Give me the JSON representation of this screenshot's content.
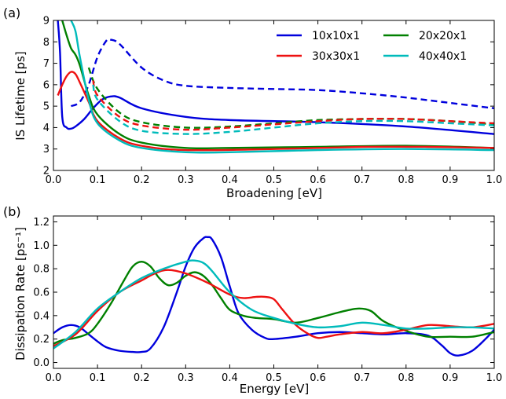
{
  "colors": {
    "10x10x1": "#0000dd",
    "20x20x1": "#008000",
    "30x30x1": "#ee1111",
    "40x40x1": "#00bbbb"
  },
  "chart_data": [
    {
      "type": "line",
      "panel_label": "(a)",
      "xlabel": "Broadening [eV]",
      "ylabel": "IS Lifetime [ps]",
      "xlim": [
        0.0,
        1.0
      ],
      "ylim": [
        2,
        9
      ],
      "xticks": [
        0.0,
        0.1,
        0.2,
        0.3,
        0.4,
        0.5,
        0.6,
        0.7,
        0.8,
        0.9,
        1.0
      ],
      "xtick_labels": [
        "0.0",
        "0.1",
        "0.2",
        "0.3",
        "0.4",
        "0.5",
        "0.6",
        "0.7",
        "0.8",
        "0.9",
        "1.0"
      ],
      "yticks": [
        2,
        3,
        4,
        5,
        6,
        7,
        8,
        9
      ],
      "ytick_labels": [
        "2",
        "3",
        "4",
        "5",
        "6",
        "7",
        "8",
        "9"
      ],
      "grid": false,
      "legend": {
        "placement": "top-right",
        "columns": 2,
        "entries": [
          "10x10x1",
          "20x20x1",
          "30x30x1",
          "40x40x1"
        ]
      },
      "series": [
        {
          "name": "10x10x1",
          "style": "solid",
          "x": [
            0.01,
            0.015,
            0.02,
            0.03,
            0.04,
            0.05,
            0.07,
            0.09,
            0.11,
            0.13,
            0.15,
            0.2,
            0.3,
            0.4,
            0.6,
            0.8,
            1.0
          ],
          "y": [
            9.0,
            7.5,
            4.5,
            4.0,
            3.95,
            4.05,
            4.4,
            4.9,
            5.3,
            5.45,
            5.4,
            4.9,
            4.5,
            4.35,
            4.25,
            4.05,
            3.7
          ]
        },
        {
          "name": "10x10x1",
          "style": "dashed",
          "x": [
            0.04,
            0.06,
            0.08,
            0.1,
            0.12,
            0.13,
            0.15,
            0.2,
            0.25,
            0.3,
            0.4,
            0.5,
            0.6,
            0.7,
            0.8,
            0.9,
            1.0
          ],
          "y": [
            5.0,
            5.2,
            6.0,
            7.3,
            8.05,
            8.1,
            7.9,
            6.8,
            6.2,
            5.95,
            5.85,
            5.8,
            5.75,
            5.6,
            5.4,
            5.15,
            4.9
          ]
        },
        {
          "name": "20x20x1",
          "style": "solid",
          "x": [
            0.02,
            0.03,
            0.04,
            0.05,
            0.06,
            0.08,
            0.1,
            0.15,
            0.2,
            0.3,
            0.4,
            0.6,
            0.8,
            1.0
          ],
          "y": [
            9.0,
            8.3,
            7.7,
            7.4,
            6.9,
            5.5,
            4.6,
            3.7,
            3.3,
            3.05,
            3.05,
            3.1,
            3.15,
            3.05
          ]
        },
        {
          "name": "20x20x1",
          "style": "dashed",
          "x": [
            0.08,
            0.1,
            0.15,
            0.2,
            0.3,
            0.4,
            0.5,
            0.6,
            0.7,
            0.8,
            0.9,
            1.0
          ],
          "y": [
            6.8,
            5.8,
            4.7,
            4.25,
            4.0,
            4.05,
            4.2,
            4.35,
            4.4,
            4.4,
            4.3,
            4.15
          ]
        },
        {
          "name": "30x30x1",
          "style": "solid",
          "x": [
            0.01,
            0.02,
            0.03,
            0.04,
            0.05,
            0.06,
            0.08,
            0.1,
            0.15,
            0.2,
            0.3,
            0.5,
            0.7,
            0.85,
            1.0
          ],
          "y": [
            5.5,
            6.0,
            6.4,
            6.6,
            6.5,
            6.1,
            5.2,
            4.3,
            3.5,
            3.15,
            2.95,
            3.0,
            3.1,
            3.1,
            3.05
          ]
        },
        {
          "name": "30x30x1",
          "style": "dashed",
          "x": [
            0.09,
            0.1,
            0.15,
            0.2,
            0.3,
            0.4,
            0.5,
            0.6,
            0.7,
            0.8,
            0.9,
            1.0
          ],
          "y": [
            6.2,
            5.5,
            4.5,
            4.1,
            3.9,
            4.0,
            4.15,
            4.3,
            4.4,
            4.4,
            4.3,
            4.2
          ]
        },
        {
          "name": "40x40x1",
          "style": "solid",
          "x": [
            0.04,
            0.05,
            0.06,
            0.08,
            0.1,
            0.15,
            0.2,
            0.3,
            0.4,
            0.6,
            0.8,
            1.0
          ],
          "y": [
            9.0,
            8.5,
            7.3,
            5.3,
            4.2,
            3.4,
            3.05,
            2.85,
            2.85,
            2.95,
            3.0,
            2.95
          ]
        },
        {
          "name": "40x40x1",
          "style": "dashed",
          "x": [
            0.09,
            0.1,
            0.15,
            0.2,
            0.3,
            0.4,
            0.5,
            0.6,
            0.7,
            0.8,
            0.9,
            1.0
          ],
          "y": [
            6.0,
            5.3,
            4.3,
            3.85,
            3.7,
            3.8,
            4.0,
            4.2,
            4.3,
            4.3,
            4.2,
            4.1
          ]
        }
      ]
    },
    {
      "type": "line",
      "panel_label": "(b)",
      "xlabel": "Energy [eV]",
      "ylabel": "Dissipation Rate [ps⁻¹]",
      "xlim": [
        0.0,
        1.0
      ],
      "ylim": [
        -0.05,
        1.25
      ],
      "xticks": [
        0.0,
        0.1,
        0.2,
        0.3,
        0.4,
        0.5,
        0.6,
        0.7,
        0.8,
        0.9,
        1.0
      ],
      "xtick_labels": [
        "0.0",
        "0.1",
        "0.2",
        "0.3",
        "0.4",
        "0.5",
        "0.6",
        "0.7",
        "0.8",
        "0.9",
        "1.0"
      ],
      "yticks": [
        0.0,
        0.2,
        0.4,
        0.6,
        0.8,
        1.0,
        1.2
      ],
      "ytick_labels": [
        "0.0",
        "0.2",
        "0.4",
        "0.6",
        "0.8",
        "1.0",
        "1.2"
      ],
      "grid": false,
      "series": [
        {
          "name": "10x10x1",
          "x": [
            0.0,
            0.02,
            0.04,
            0.06,
            0.08,
            0.1,
            0.12,
            0.15,
            0.18,
            0.2,
            0.22,
            0.25,
            0.28,
            0.3,
            0.32,
            0.34,
            0.35,
            0.36,
            0.38,
            0.4,
            0.42,
            0.45,
            0.48,
            0.5,
            0.55,
            0.6,
            0.65,
            0.7,
            0.75,
            0.8,
            0.85,
            0.88,
            0.9,
            0.92,
            0.95,
            0.98,
            1.0
          ],
          "y": [
            0.25,
            0.3,
            0.32,
            0.3,
            0.24,
            0.18,
            0.13,
            0.1,
            0.09,
            0.09,
            0.12,
            0.3,
            0.6,
            0.82,
            0.98,
            1.06,
            1.07,
            1.05,
            0.9,
            0.65,
            0.42,
            0.28,
            0.21,
            0.2,
            0.22,
            0.25,
            0.26,
            0.25,
            0.24,
            0.25,
            0.23,
            0.15,
            0.08,
            0.06,
            0.1,
            0.2,
            0.28
          ]
        },
        {
          "name": "20x20x1",
          "x": [
            0.0,
            0.02,
            0.05,
            0.08,
            0.1,
            0.13,
            0.16,
            0.18,
            0.2,
            0.22,
            0.24,
            0.26,
            0.28,
            0.3,
            0.32,
            0.34,
            0.36,
            0.38,
            0.4,
            0.43,
            0.46,
            0.5,
            0.55,
            0.6,
            0.65,
            0.69,
            0.72,
            0.75,
            0.8,
            0.85,
            0.9,
            0.95,
            1.0
          ],
          "y": [
            0.16,
            0.19,
            0.21,
            0.25,
            0.33,
            0.5,
            0.7,
            0.82,
            0.86,
            0.82,
            0.72,
            0.66,
            0.68,
            0.74,
            0.77,
            0.74,
            0.66,
            0.55,
            0.45,
            0.4,
            0.38,
            0.37,
            0.34,
            0.38,
            0.43,
            0.46,
            0.44,
            0.35,
            0.27,
            0.22,
            0.22,
            0.22,
            0.26
          ]
        },
        {
          "name": "30x30x1",
          "x": [
            0.0,
            0.05,
            0.1,
            0.15,
            0.2,
            0.23,
            0.26,
            0.3,
            0.35,
            0.4,
            0.43,
            0.46,
            0.48,
            0.5,
            0.52,
            0.55,
            0.58,
            0.6,
            0.62,
            0.65,
            0.7,
            0.75,
            0.8,
            0.85,
            0.9,
            0.95,
            1.0
          ],
          "y": [
            0.14,
            0.24,
            0.44,
            0.6,
            0.7,
            0.76,
            0.79,
            0.76,
            0.68,
            0.58,
            0.55,
            0.56,
            0.56,
            0.54,
            0.45,
            0.32,
            0.24,
            0.21,
            0.22,
            0.24,
            0.26,
            0.25,
            0.28,
            0.32,
            0.31,
            0.3,
            0.33
          ]
        },
        {
          "name": "40x40x1",
          "x": [
            0.0,
            0.05,
            0.1,
            0.15,
            0.2,
            0.25,
            0.3,
            0.32,
            0.34,
            0.36,
            0.4,
            0.45,
            0.5,
            0.55,
            0.6,
            0.65,
            0.7,
            0.75,
            0.8,
            0.85,
            0.9,
            0.95,
            1.0
          ],
          "y": [
            0.12,
            0.26,
            0.46,
            0.6,
            0.72,
            0.8,
            0.86,
            0.87,
            0.85,
            0.78,
            0.6,
            0.45,
            0.38,
            0.33,
            0.3,
            0.31,
            0.34,
            0.32,
            0.29,
            0.29,
            0.3,
            0.3,
            0.29
          ]
        }
      ]
    }
  ]
}
